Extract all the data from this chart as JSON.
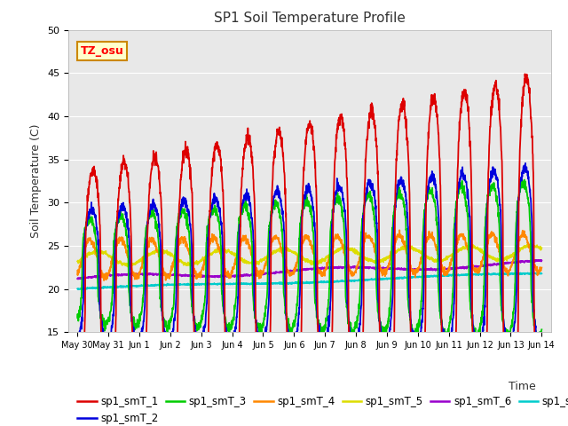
{
  "title": "SP1 Soil Temperature Profile",
  "xlabel": "Time",
  "ylabel": "Soil Temperature (C)",
  "ylim": [
    15,
    50
  ],
  "background_color": "#ffffff",
  "plot_bg_color": "#e8e8e8",
  "series_colors": {
    "sp1_smT_1": "#dd0000",
    "sp1_smT_2": "#0000dd",
    "sp1_smT_3": "#00cc00",
    "sp1_smT_4": "#ff8800",
    "sp1_smT_5": "#dddd00",
    "sp1_smT_6": "#9900cc",
    "sp1_smT_7": "#00cccc"
  },
  "annotation_text": "TZ_osu",
  "annotation_bg": "#ffffcc",
  "annotation_border": "#cc8800",
  "tick_labels": [
    "May 30",
    "May 31",
    "Jun 1",
    "Jun 2",
    "Jun 3",
    "Jun 4",
    "Jun 5",
    "Jun 6",
    "Jun 7",
    "Jun 8",
    "Jun 9",
    "Jun 10",
    "Jun 11",
    "Jun 12",
    "Jun 13",
    "Jun 14"
  ],
  "n_points": 2000
}
